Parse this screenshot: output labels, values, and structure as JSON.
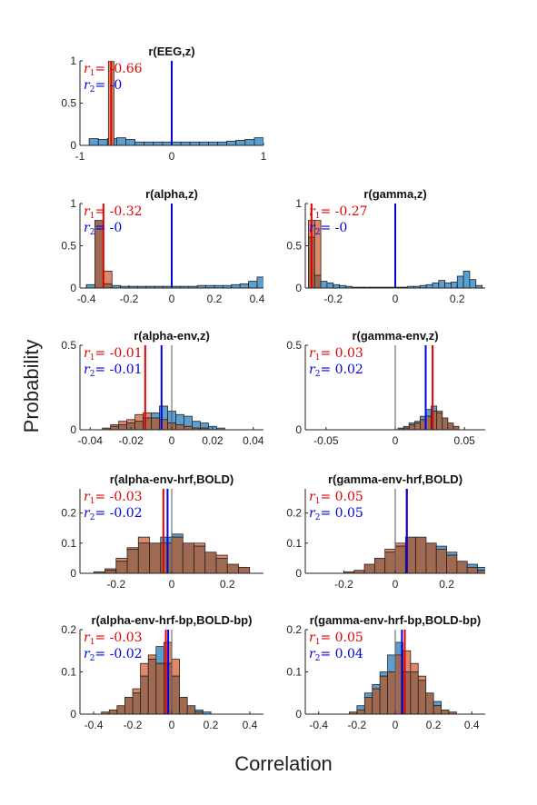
{
  "figure": {
    "ylabel": "Probability",
    "xlabel": "Correlation"
  },
  "colors": {
    "blue_bar": "#5b9fd0",
    "orange_bar": "#e0896a",
    "overlap_bar": "#a06a52",
    "r1": "#e00000",
    "r2": "#0000e0",
    "zero_line": "#000000"
  },
  "chart_data": [
    {
      "type": "bar",
      "title": "r(EEG,z)",
      "xlim": [
        -1,
        1
      ],
      "ylim": [
        0,
        1
      ],
      "xticks": [
        {
          "v": -1,
          "t": "-1"
        },
        {
          "v": 0,
          "t": "0"
        },
        {
          "v": 1,
          "t": "1"
        }
      ],
      "yticks": [
        {
          "v": 0,
          "t": "0"
        },
        {
          "v": 0.5,
          "t": "0.5"
        },
        {
          "v": 1,
          "t": "1"
        }
      ],
      "bin_start": -0.9,
      "bin_width": 0.1,
      "series": [
        {
          "values": [
            0.08,
            0.07,
            0.08,
            0.09,
            0.07,
            0.04,
            0.04,
            0.04,
            0.04,
            0.04,
            0.04,
            0.04,
            0.04,
            0.04,
            0.04,
            0.05,
            0.06,
            0.07,
            0.09
          ]
        }
      ],
      "r1": {
        "label": "= -0.66",
        "value": -0.66
      },
      "r2": {
        "label": "= -0",
        "value": 0
      },
      "r1_band": [
        -0.69,
        -0.63
      ]
    },
    {
      "type": "bar",
      "title": "r(alpha,z)",
      "xlim": [
        -0.43,
        0.43
      ],
      "ylim": [
        0,
        1
      ],
      "xticks": [
        {
          "v": -0.4,
          "t": "-0.4"
        },
        {
          "v": -0.2,
          "t": "-0.2"
        },
        {
          "v": 0,
          "t": "0"
        },
        {
          "v": 0.2,
          "t": "0.2"
        },
        {
          "v": 0.4,
          "t": "0.4"
        }
      ],
      "yticks": [
        {
          "v": 0,
          "t": "0"
        },
        {
          "v": 0.5,
          "t": "0.5"
        },
        {
          "v": 1,
          "t": "1"
        }
      ],
      "bin_start": -0.4,
      "bin_width": 0.04,
      "series": [
        {
          "values": [
            0.04,
            0.8,
            0.05,
            0.03,
            0.02,
            0.02,
            0.02,
            0.02,
            0.02,
            0.02,
            0.02,
            0.02,
            0.02,
            0.03,
            0.03,
            0.03,
            0.03,
            0.04,
            0.05,
            0.08,
            0.13
          ]
        },
        {
          "values": [
            0,
            0.8,
            0.2,
            0,
            0,
            0,
            0,
            0,
            0,
            0,
            0,
            0,
            0,
            0,
            0,
            0,
            0,
            0,
            0,
            0,
            0
          ]
        }
      ],
      "r1": {
        "label": "= -0.32",
        "value": -0.32
      },
      "r2": {
        "label": "= -0",
        "value": 0
      }
    },
    {
      "type": "bar",
      "title": "r(gamma,z)",
      "xlim": [
        -0.29,
        0.29
      ],
      "ylim": [
        0,
        1
      ],
      "xticks": [
        {
          "v": -0.2,
          "t": "-0.2"
        },
        {
          "v": 0,
          "t": "0"
        },
        {
          "v": 0.2,
          "t": "0.2"
        }
      ],
      "yticks": [
        {
          "v": 0,
          "t": "0"
        },
        {
          "v": 0.5,
          "t": "0.5"
        },
        {
          "v": 1,
          "t": "1"
        }
      ],
      "bin_start": -0.28,
      "bin_width": 0.02,
      "series": [
        {
          "values": [
            0.6,
            0.15,
            0.08,
            0.06,
            0.04,
            0.03,
            0.02,
            0.01,
            0.01,
            0.01,
            0.01,
            0.01,
            0.01,
            0.01,
            0.01,
            0.01,
            0.02,
            0.02,
            0.03,
            0.04,
            0.06,
            0.09,
            0.06,
            0.07,
            0.14,
            0.2,
            0.1,
            0.03
          ]
        },
        {
          "values": [
            0.8,
            0.8,
            0,
            0,
            0,
            0,
            0,
            0,
            0,
            0,
            0,
            0,
            0,
            0,
            0,
            0,
            0,
            0,
            0,
            0,
            0,
            0,
            0,
            0,
            0,
            0,
            0,
            0
          ]
        }
      ],
      "r1": {
        "label": "= -0.27",
        "value": -0.27
      },
      "r2": {
        "label": "= -0",
        "value": 0
      }
    },
    {
      "type": "bar",
      "title": "r(alpha-env,z)",
      "xlim": [
        -0.045,
        0.045
      ],
      "ylim": [
        0,
        0.5
      ],
      "xticks": [
        {
          "v": -0.04,
          "t": "-0.04"
        },
        {
          "v": -0.02,
          "t": "-0.02"
        },
        {
          "v": 0,
          "t": "0"
        },
        {
          "v": 0.02,
          "t": "0.02"
        },
        {
          "v": 0.04,
          "t": "0.04"
        }
      ],
      "yticks": [
        {
          "v": 0,
          "t": "0"
        },
        {
          "v": 0.5,
          "t": "0.5"
        }
      ],
      "bin_start": -0.034,
      "bin_width": 0.004,
      "series": [
        {
          "values": [
            0.01,
            0.02,
            0.03,
            0.04,
            0.05,
            0.07,
            0.1,
            0.14,
            0.11,
            0.09,
            0.08,
            0.05,
            0.04,
            0.02,
            0.01
          ]
        },
        {
          "values": [
            0.01,
            0.03,
            0.05,
            0.06,
            0.09,
            0.1,
            0.07,
            0.06,
            0.04,
            0.03,
            0.02,
            0.01,
            0.01,
            0,
            0
          ]
        }
      ],
      "r1": {
        "label": "= -0.01",
        "value": -0.013
      },
      "r2": {
        "label": "= -0.01",
        "value": -0.005
      }
    },
    {
      "type": "bar",
      "title": "r(gamma-env,z)",
      "xlim": [
        -0.065,
        0.065
      ],
      "ylim": [
        0,
        0.5
      ],
      "xticks": [
        {
          "v": -0.05,
          "t": "-0.05"
        },
        {
          "v": 0,
          "t": "0"
        },
        {
          "v": 0.05,
          "t": "0.05"
        }
      ],
      "yticks": [
        {
          "v": 0,
          "t": "0"
        },
        {
          "v": 0.5,
          "t": "0.5"
        }
      ],
      "bin_start": 0.002,
      "bin_width": 0.004,
      "series": [
        {
          "values": [
            0.01,
            0.02,
            0.04,
            0.05,
            0.08,
            0.12,
            0.14,
            0.1,
            0.07,
            0.04,
            0.02
          ]
        },
        {
          "values": [
            0.01,
            0.01,
            0.03,
            0.04,
            0.06,
            0.08,
            0.11,
            0.11,
            0.07,
            0.04,
            0.02
          ]
        }
      ],
      "r1": {
        "label": "= 0.03",
        "value": 0.027
      },
      "r2": {
        "label": "= 0.02",
        "value": 0.022
      }
    },
    {
      "type": "bar",
      "title": "r(alpha-env-hrf,BOLD)",
      "xlim": [
        -0.33,
        0.33
      ],
      "ylim": [
        0,
        0.28
      ],
      "xticks": [
        {
          "v": -0.2,
          "t": "-0.2"
        },
        {
          "v": 0,
          "t": "0"
        },
        {
          "v": 0.2,
          "t": "0.2"
        }
      ],
      "yticks": [
        {
          "v": 0,
          "t": "0"
        },
        {
          "v": 0.1,
          "t": "0.1"
        },
        {
          "v": 0.2,
          "t": "0.2"
        }
      ],
      "bin_start": -0.28,
      "bin_width": 0.04,
      "series": [
        {
          "values": [
            0.005,
            0.01,
            0.04,
            0.08,
            0.1,
            0.1,
            0.12,
            0.13,
            0.1,
            0.09,
            0.07,
            0.05,
            0.03,
            0.02
          ]
        },
        {
          "values": [
            0.005,
            0.015,
            0.05,
            0.085,
            0.12,
            0.1,
            0.1,
            0.12,
            0.1,
            0.1,
            0.07,
            0.06,
            0.03,
            0.02
          ]
        }
      ],
      "r1": {
        "label": "= -0.03",
        "value": -0.03
      },
      "r2": {
        "label": "= -0.02",
        "value": -0.015
      }
    },
    {
      "type": "bar",
      "title": "r(gamma-env-hrf,BOLD)",
      "xlim": [
        -0.35,
        0.35
      ],
      "ylim": [
        0,
        0.28
      ],
      "xticks": [
        {
          "v": -0.2,
          "t": "-0.2"
        },
        {
          "v": 0,
          "t": "0"
        },
        {
          "v": 0.2,
          "t": "0.2"
        }
      ],
      "yticks": [
        {
          "v": 0,
          "t": "0"
        },
        {
          "v": 0.1,
          "t": "0.1"
        },
        {
          "v": 0.2,
          "t": "0.2"
        }
      ],
      "bin_start": -0.2,
      "bin_width": 0.04,
      "series": [
        {
          "values": [
            0.005,
            0.01,
            0.03,
            0.05,
            0.07,
            0.09,
            0.12,
            0.12,
            0.1,
            0.09,
            0.07,
            0.04,
            0.03,
            0.02
          ]
        },
        {
          "values": [
            0.005,
            0.01,
            0.03,
            0.05,
            0.08,
            0.1,
            0.12,
            0.12,
            0.1,
            0.08,
            0.06,
            0.04,
            0.02,
            0.01
          ]
        }
      ],
      "r1": {
        "label": "= 0.05",
        "value": 0.045
      },
      "r2": {
        "label": "= 0.05",
        "value": 0.045
      }
    },
    {
      "type": "bar",
      "title": "r(alpha-env-hrf-bp,BOLD-bp)",
      "xlim": [
        -0.47,
        0.47
      ],
      "ylim": [
        0,
        0.2
      ],
      "xticks": [
        {
          "v": -0.4,
          "t": "-0.4"
        },
        {
          "v": -0.2,
          "t": "-0.2"
        },
        {
          "v": 0,
          "t": "0"
        },
        {
          "v": 0.2,
          "t": "0.2"
        },
        {
          "v": 0.4,
          "t": "0.4"
        }
      ],
      "yticks": [
        {
          "v": 0,
          "t": "0"
        },
        {
          "v": 0.1,
          "t": "0.1"
        },
        {
          "v": 0.2,
          "t": "0.2"
        }
      ],
      "bin_start": -0.36,
      "bin_width": 0.04,
      "series": [
        {
          "values": [
            0.005,
            0.01,
            0.02,
            0.04,
            0.05,
            0.09,
            0.13,
            0.16,
            0.12,
            0.09,
            0.04,
            0.02,
            0.01,
            0.005
          ]
        },
        {
          "values": [
            0.005,
            0.01,
            0.02,
            0.04,
            0.06,
            0.12,
            0.14,
            0.12,
            0.17,
            0.13,
            0.04,
            0.02,
            0.005,
            0
          ]
        }
      ],
      "r1": {
        "label": "= -0.03",
        "value": -0.03
      },
      "r2": {
        "label": "= -0.02",
        "value": -0.018
      }
    },
    {
      "type": "bar",
      "title": "r(gamma-env-hrf-bp,BOLD-bp)",
      "xlim": [
        -0.47,
        0.47
      ],
      "ylim": [
        0,
        0.2
      ],
      "xticks": [
        {
          "v": -0.4,
          "t": "-0.4"
        },
        {
          "v": -0.2,
          "t": "-0.2"
        },
        {
          "v": 0,
          "t": "0"
        },
        {
          "v": 0.2,
          "t": "0.2"
        },
        {
          "v": 0.4,
          "t": "0.4"
        }
      ],
      "yticks": [
        {
          "v": 0,
          "t": "0"
        },
        {
          "v": 0.1,
          "t": "0.1"
        },
        {
          "v": 0.2,
          "t": "0.2"
        }
      ],
      "bin_start": -0.24,
      "bin_width": 0.04,
      "series": [
        {
          "values": [
            0.005,
            0.02,
            0.05,
            0.07,
            0.1,
            0.14,
            0.17,
            0.1,
            0.1,
            0.08,
            0.05,
            0.03,
            0.01,
            0.005
          ]
        },
        {
          "values": [
            0.005,
            0.01,
            0.04,
            0.06,
            0.09,
            0.1,
            0.14,
            0.15,
            0.12,
            0.09,
            0.05,
            0.02,
            0.01,
            0.005
          ]
        }
      ],
      "r1": {
        "label": "= 0.05",
        "value": 0.05
      },
      "r2": {
        "label": "= 0.04",
        "value": 0.035
      }
    }
  ]
}
